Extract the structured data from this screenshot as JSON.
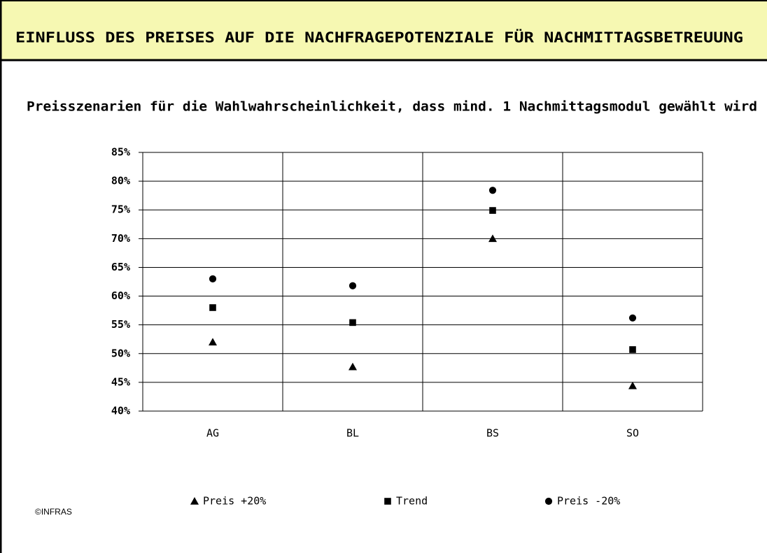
{
  "header": {
    "title": "EINFLUSS DES PREISES AUF DIE NACHFRAGEPOTENZIALE FÜR NACHMITTAGSBETREUUNG"
  },
  "chart_data": {
    "type": "scatter",
    "title": "Preisszenarien für die Wahlwahrscheinlichkeit, dass mind. 1 Nachmittagsmodul gewählt wird",
    "categories": [
      "AG",
      "BL",
      "BS",
      "SO"
    ],
    "series": [
      {
        "name": "Preis +20%",
        "color": "#000000",
        "marker": "triangle",
        "values": [
          52.0,
          47.7,
          70.0,
          44.4
        ]
      },
      {
        "name": "Trend",
        "color": "#000000",
        "marker": "square",
        "values": [
          58.0,
          55.4,
          74.9,
          50.7
        ]
      },
      {
        "name": "Preis -20%",
        "color": "#000000",
        "marker": "circle",
        "values": [
          63.0,
          61.8,
          78.4,
          56.2
        ]
      }
    ],
    "ylim": [
      40,
      85
    ],
    "yticks": [
      {
        "value": 40,
        "label": "40%"
      },
      {
        "value": 45,
        "label": "45%"
      },
      {
        "value": 50,
        "label": "50%"
      },
      {
        "value": 55,
        "label": "55%"
      },
      {
        "value": 60,
        "label": "60%"
      },
      {
        "value": 65,
        "label": "65%"
      },
      {
        "value": 70,
        "label": "70%"
      },
      {
        "value": 75,
        "label": "75%"
      },
      {
        "value": 80,
        "label": "80%"
      },
      {
        "value": 85,
        "label": "85%"
      }
    ],
    "grid": true,
    "legend": "bottom"
  },
  "footer": {
    "copyright": "©INFRAS"
  }
}
